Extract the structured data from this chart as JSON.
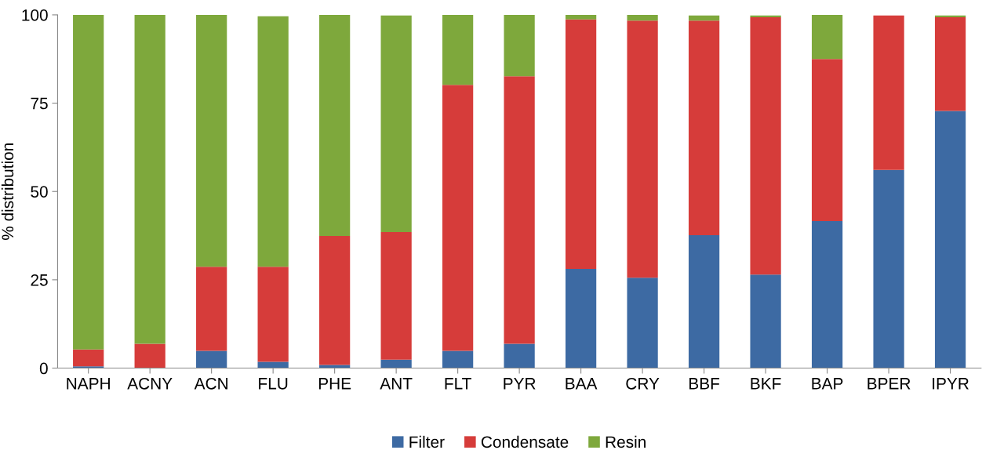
{
  "chart_data": {
    "type": "bar",
    "stacked": true,
    "ylabel": "% distribution",
    "categories": [
      "NAPH",
      "ACNY",
      "ACN",
      "FLU",
      "PHE",
      "ANT",
      "FLT",
      "PYR",
      "BAA",
      "CRY",
      "BBF",
      "BKF",
      "BAP",
      "BPER",
      "IPYR"
    ],
    "series": [
      {
        "name": "Filter",
        "color": "#3d6aa3",
        "values": [
          0.5,
          0,
          4.9,
          1.8,
          0.9,
          2.4,
          4.9,
          6.9,
          28.1,
          25.6,
          37.6,
          26.5,
          41.6,
          56.1,
          72.8
        ]
      },
      {
        "name": "Condensate",
        "color": "#d63c3a",
        "values": [
          4.8,
          6.9,
          23.8,
          26.9,
          36.5,
          36.1,
          75.3,
          75.7,
          70.6,
          72.8,
          60.8,
          72.8,
          45.9,
          43.7,
          26.5
        ]
      },
      {
        "name": "Resin",
        "color": "#7ea83c",
        "values": [
          94.7,
          93.1,
          71.3,
          70.9,
          62.6,
          61.3,
          19.8,
          17.4,
          1.3,
          1.6,
          1.4,
          0.5,
          12.5,
          0,
          0.5
        ]
      }
    ],
    "ylim": [
      0,
      100
    ],
    "yticks": [
      0,
      25,
      50,
      75,
      100
    ],
    "grid": false,
    "legend": "bottom"
  }
}
